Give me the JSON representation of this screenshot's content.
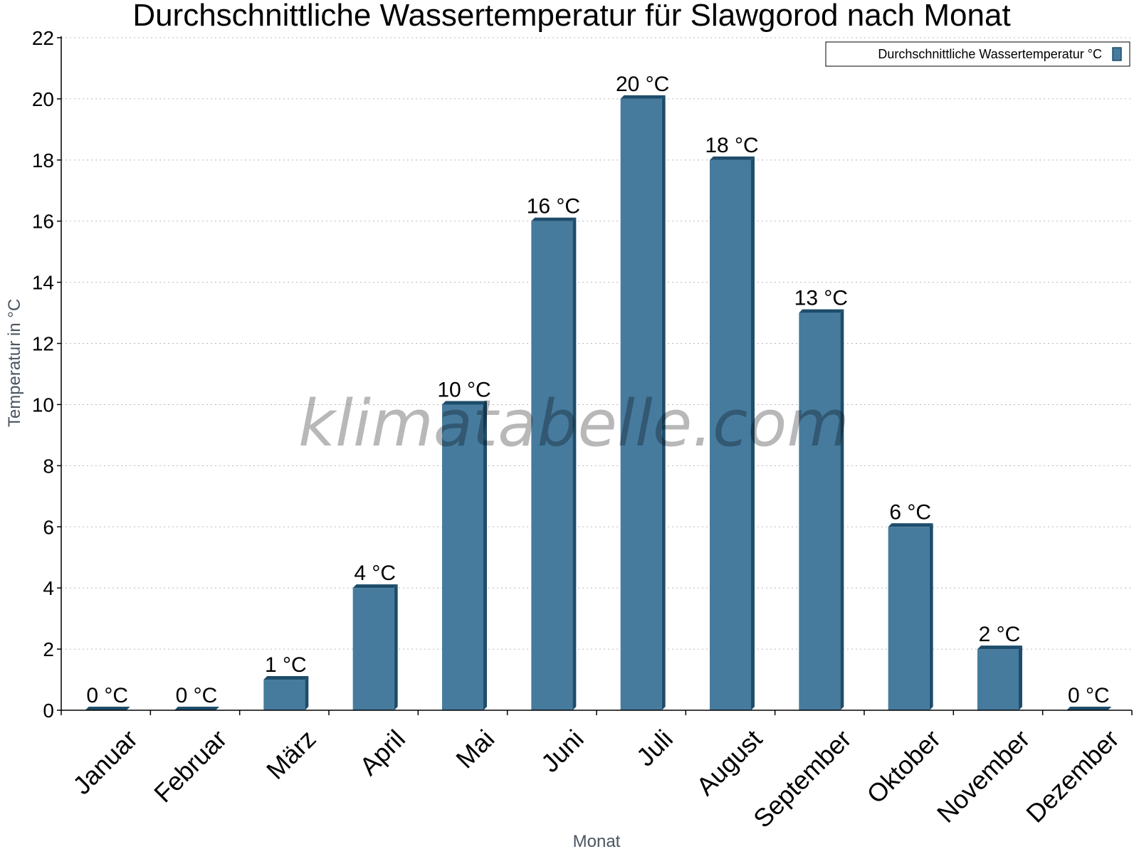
{
  "chart_data": {
    "type": "bar",
    "title": "Durchschnittliche Wassertemperatur für Slawgorod nach Monat",
    "xlabel": "Monat",
    "ylabel": "Temperatur in °C",
    "categories": [
      "Januar",
      "Februar",
      "März",
      "April",
      "Mai",
      "Juni",
      "Juli",
      "August",
      "September",
      "Oktober",
      "November",
      "Dezember"
    ],
    "series": [
      {
        "name": "Durchschnittliche Wassertemperatur °C",
        "values": [
          0,
          0,
          1,
          4,
          10,
          16,
          20,
          18,
          13,
          6,
          2,
          0
        ],
        "labels": [
          "0 °C",
          "0 °C",
          "1 °C",
          "4 °C",
          "10 °C",
          "16 °C",
          "20 °C",
          "18 °C",
          "13 °C",
          "6 °C",
          "2 °C",
          "0 °C"
        ]
      }
    ],
    "ylim": [
      0,
      22
    ],
    "yticks": [
      0,
      2,
      4,
      6,
      8,
      10,
      12,
      14,
      16,
      18,
      20,
      22
    ],
    "grid": true,
    "legend_position": "top-right",
    "bar_color": "#467b9e",
    "bar_edge_color": "#1e4d6b",
    "watermark": "klimatabelle.com"
  }
}
